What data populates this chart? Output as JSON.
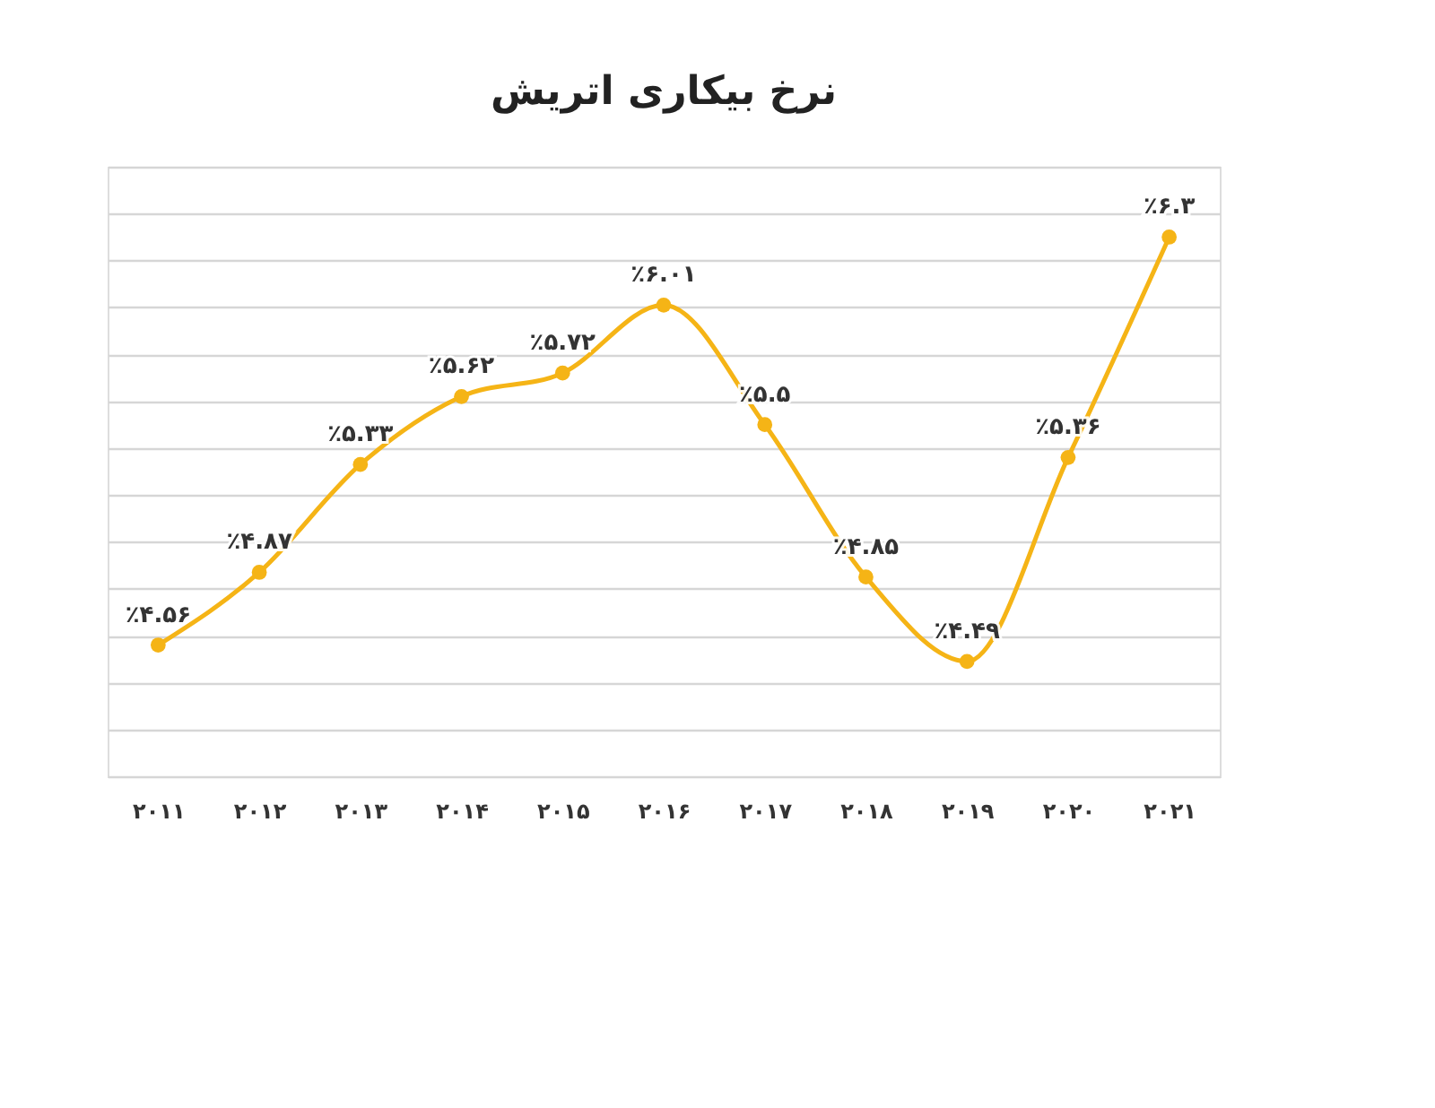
{
  "chart_data": {
    "type": "line",
    "title": "نرخ بیکاری اتریش",
    "categories": [
      "۲۰۱۱",
      "۲۰۱۲",
      "۲۰۱۳",
      "۲۰۱۴",
      "۲۰۱۵",
      "۲۰۱۶",
      "۲۰۱۷",
      "۲۰۱۸",
      "۲۰۱۹",
      "۲۰۲۰",
      "۲۰۲۱"
    ],
    "series": [
      {
        "color": "#f5b416",
        "values": [
          4.56,
          4.87,
          5.33,
          5.62,
          5.72,
          6.01,
          5.5,
          4.85,
          4.49,
          5.36,
          6.3
        ],
        "value_labels": [
          "٪۴.۵۶",
          "٪۴.۸۷",
          "٪۵.۳۳",
          "٪۵.۶۲",
          "٪۵.۷۲",
          "٪۶.۰۱",
          "٪۵.۵",
          "٪۴.۸۵",
          "٪۴.۴۹",
          "٪۵.۳۶",
          "٪۶.۳"
        ]
      }
    ],
    "ylim": [
      4.0,
      6.6
    ],
    "grid": "y",
    "marker": "circle",
    "line_style": "solid",
    "tick_labels": "x"
  }
}
